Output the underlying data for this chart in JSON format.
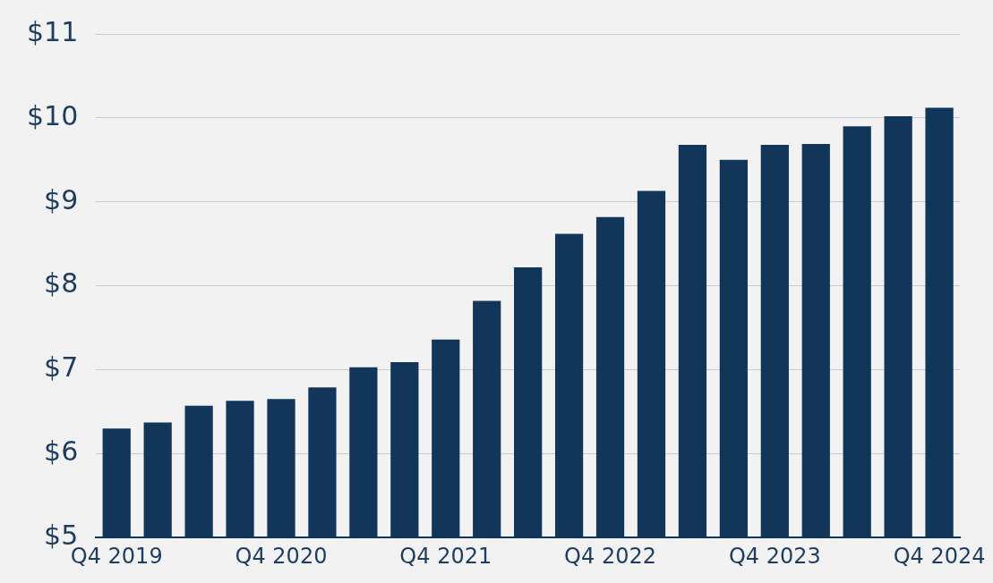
{
  "chart_data": {
    "type": "bar",
    "categories": [
      "Q4 2019",
      null,
      null,
      null,
      "Q4 2020",
      null,
      null,
      null,
      "Q4 2021",
      null,
      null,
      null,
      "Q4 2022",
      null,
      null,
      null,
      "Q4 2023",
      null,
      null,
      null,
      "Q4 2024"
    ],
    "values": [
      6.3,
      6.37,
      6.57,
      6.63,
      6.65,
      6.79,
      7.03,
      7.09,
      7.36,
      7.82,
      8.22,
      8.62,
      8.82,
      9.13,
      9.68,
      9.5,
      9.68,
      9.69,
      9.9,
      10.02,
      10.12
    ],
    "color": "#12355a",
    "ylim": [
      5,
      11
    ],
    "yticks": [
      {
        "value": 5,
        "label": "$5"
      },
      {
        "value": 6,
        "label": "$6"
      },
      {
        "value": 7,
        "label": "$7"
      },
      {
        "value": 8,
        "label": "$8"
      },
      {
        "value": 9,
        "label": "$9"
      },
      {
        "value": 10,
        "label": "$10"
      },
      {
        "value": 11,
        "label": "$11"
      }
    ],
    "grid": "y",
    "legend": false
  }
}
